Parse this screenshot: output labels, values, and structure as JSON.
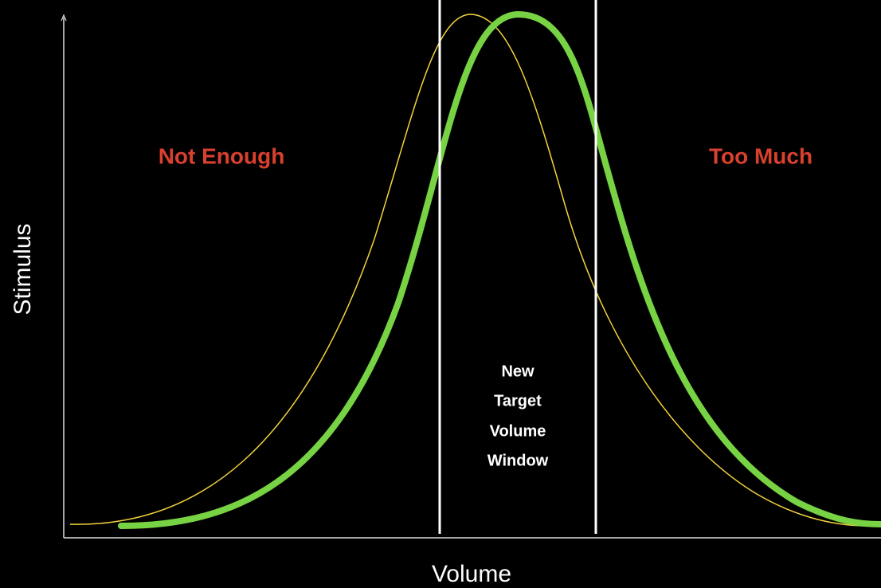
{
  "labels": {
    "left": "Not Enough",
    "right": "Too Much",
    "window": [
      "New",
      "Target",
      "Volume",
      "Window"
    ]
  },
  "axes": {
    "x": "Volume",
    "y": "Stimulus"
  }
}
